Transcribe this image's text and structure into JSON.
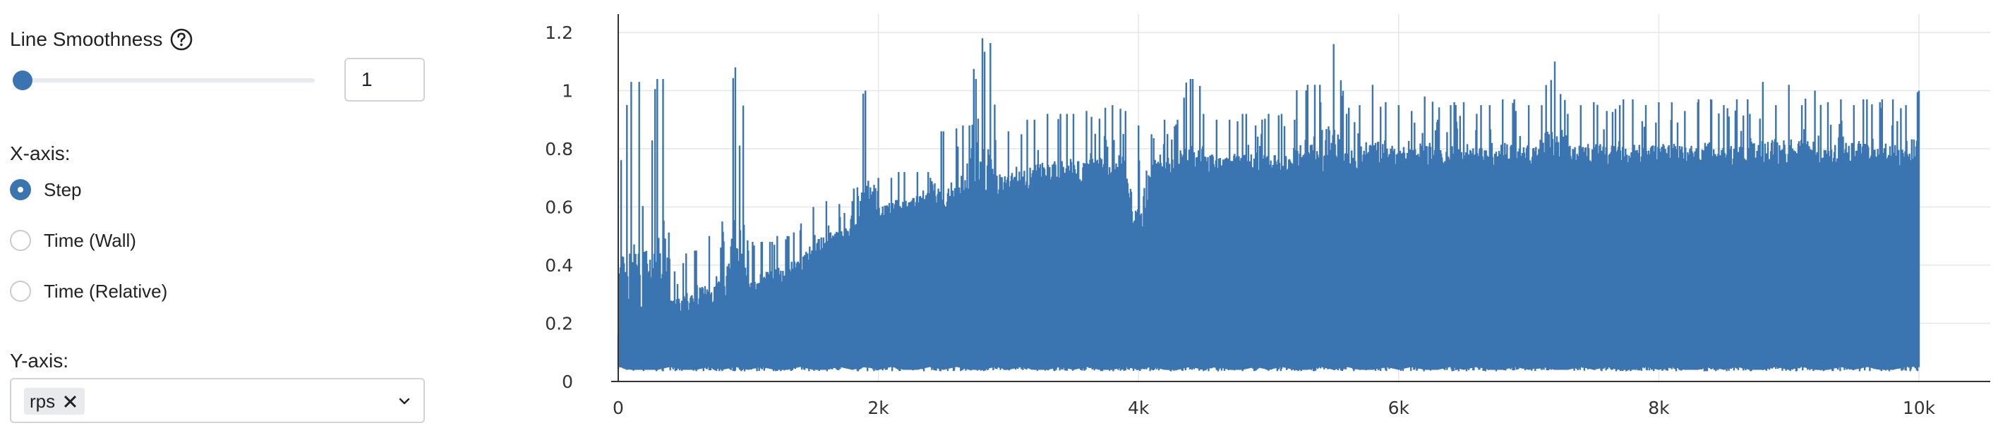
{
  "controls": {
    "smoothness_label": "Line Smoothness",
    "smoothness_value": "1",
    "smoothness_fraction": 0,
    "xaxis_label": "X-axis:",
    "xaxis_options": [
      {
        "label": "Step",
        "checked": true
      },
      {
        "label": "Time (Wall)",
        "checked": false
      },
      {
        "label": "Time (Relative)",
        "checked": false
      }
    ],
    "yaxis_label": "Y-axis:",
    "yaxis_selected": "rps",
    "accent_color": "#3a74b1"
  },
  "chart_data": {
    "type": "line",
    "title": "",
    "xlabel": "",
    "ylabel": "",
    "xlim": [
      0,
      10000
    ],
    "ylim": [
      0,
      1.2
    ],
    "x_ticks": [
      0,
      2000,
      4000,
      6000,
      8000,
      10000
    ],
    "x_tick_labels": [
      "0",
      "2k",
      "4k",
      "6k",
      "8k",
      "10k"
    ],
    "y_ticks": [
      0,
      0.2,
      0.4,
      0.6,
      0.8,
      1.0,
      1.2
    ],
    "y_tick_labels": [
      "0",
      "0.2",
      "0.4",
      "0.6",
      "0.8",
      "1",
      "1.2"
    ],
    "grid": true,
    "series": [
      {
        "color": "#3a74b1",
        "x": [
          0,
          100,
          200,
          300,
          400,
          500,
          600,
          700,
          800,
          900,
          1000,
          1100,
          1200,
          1300,
          1400,
          1500,
          1600,
          1700,
          1800,
          1900,
          2000,
          2100,
          2200,
          2300,
          2400,
          2500,
          2600,
          2700,
          2800,
          2900,
          3000,
          3100,
          3200,
          3300,
          3400,
          3500,
          3600,
          3700,
          3800,
          3900,
          4000,
          4100,
          4200,
          4300,
          4400,
          4500,
          4600,
          4700,
          4800,
          4900,
          5000,
          5100,
          5200,
          5300,
          5400,
          5500,
          5600,
          5700,
          5800,
          5900,
          6000,
          6100,
          6200,
          6300,
          6400,
          6500,
          6600,
          6700,
          6800,
          6900,
          7000,
          7100,
          7200,
          7300,
          7400,
          7500,
          7600,
          7700,
          7800,
          7900,
          8000,
          8100,
          8200,
          8300,
          8400,
          8500,
          8600,
          8700,
          8800,
          8900,
          9000,
          9100,
          9200,
          9300,
          9400,
          9500,
          9600,
          9700,
          9800,
          9900,
          10000
        ],
        "y_low": [
          0.05,
          0.04,
          0.04,
          0.04,
          0.05,
          0.04,
          0.04,
          0.05,
          0.04,
          0.05,
          0.04,
          0.05,
          0.04,
          0.04,
          0.05,
          0.04,
          0.04,
          0.05,
          0.04,
          0.05,
          0.04,
          0.05,
          0.04,
          0.04,
          0.05,
          0.04,
          0.05,
          0.04,
          0.04,
          0.05,
          0.04,
          0.05,
          0.04,
          0.04,
          0.05,
          0.04,
          0.05,
          0.04,
          0.04,
          0.05,
          0.04,
          0.05,
          0.04,
          0.04,
          0.05,
          0.04,
          0.05,
          0.04,
          0.04,
          0.05,
          0.04,
          0.05,
          0.04,
          0.04,
          0.05,
          0.04,
          0.05,
          0.04,
          0.04,
          0.05,
          0.04,
          0.05,
          0.04,
          0.04,
          0.05,
          0.04,
          0.05,
          0.04,
          0.04,
          0.05,
          0.04,
          0.05,
          0.04,
          0.04,
          0.05,
          0.04,
          0.05,
          0.04,
          0.04,
          0.05,
          0.04,
          0.05,
          0.04,
          0.04,
          0.05,
          0.04,
          0.05,
          0.04,
          0.04,
          0.05,
          0.04,
          0.05,
          0.04,
          0.04,
          0.05,
          0.04,
          0.05,
          0.04,
          0.04,
          0.05,
          0.05
        ],
        "y_high": [
          0.16,
          1.03,
          0.26,
          1.04,
          0.25,
          0.4,
          0.45,
          0.5,
          0.55,
          1.08,
          0.45,
          0.48,
          0.47,
          0.5,
          0.52,
          0.6,
          0.62,
          0.61,
          0.62,
          1.0,
          0.7,
          0.7,
          0.72,
          0.72,
          0.7,
          0.86,
          0.87,
          0.88,
          1.18,
          0.83,
          0.86,
          0.85,
          0.9,
          0.92,
          0.88,
          0.92,
          0.93,
          0.85,
          0.95,
          0.93,
          0.88,
          0.85,
          0.9,
          0.9,
          1.04,
          0.92,
          0.9,
          0.9,
          0.92,
          0.88,
          0.92,
          0.92,
          0.9,
          1.02,
          0.96,
          1.16,
          0.92,
          0.95,
          1.02,
          0.96,
          0.95,
          0.93,
          0.98,
          0.9,
          0.95,
          0.96,
          0.92,
          0.95,
          0.97,
          0.93,
          0.95,
          0.95,
          1.1,
          0.92,
          0.95,
          0.96,
          0.93,
          0.95,
          0.97,
          0.95,
          0.96,
          0.96,
          0.93,
          0.96,
          0.97,
          0.95,
          0.97,
          0.92,
          1.03,
          0.95,
          1.02,
          0.95,
          1.0,
          0.96,
          0.97,
          0.95,
          0.97,
          0.96,
          0.97,
          0.95,
          1.0
        ],
        "y_band": [
          0.13,
          0.17,
          0.18,
          0.2,
          0.22,
          0.23,
          0.24,
          0.26,
          0.27,
          0.28,
          0.3,
          0.32,
          0.33,
          0.35,
          0.38,
          0.4,
          0.45,
          0.47,
          0.5,
          0.52,
          0.56,
          0.57,
          0.58,
          0.6,
          0.61,
          0.55,
          0.62,
          0.63,
          0.64,
          0.63,
          0.65,
          0.65,
          0.66,
          0.67,
          0.67,
          0.68,
          0.68,
          0.68,
          0.69,
          0.69,
          0.4,
          0.69,
          0.7,
          0.7,
          0.7,
          0.7,
          0.71,
          0.71,
          0.71,
          0.72,
          0.72,
          0.72,
          0.72,
          0.72,
          0.72,
          0.73,
          0.73,
          0.73,
          0.73,
          0.73,
          0.74,
          0.74,
          0.74,
          0.74,
          0.74,
          0.74,
          0.74,
          0.74,
          0.74,
          0.74,
          0.74,
          0.74,
          0.74,
          0.74,
          0.74,
          0.74,
          0.74,
          0.74,
          0.74,
          0.74,
          0.74,
          0.74,
          0.74,
          0.74,
          0.74,
          0.74,
          0.74,
          0.74,
          0.74,
          0.74,
          0.74,
          0.74,
          0.74,
          0.74,
          0.74,
          0.74,
          0.74,
          0.74,
          0.74,
          0.74,
          0.75
        ]
      }
    ]
  }
}
